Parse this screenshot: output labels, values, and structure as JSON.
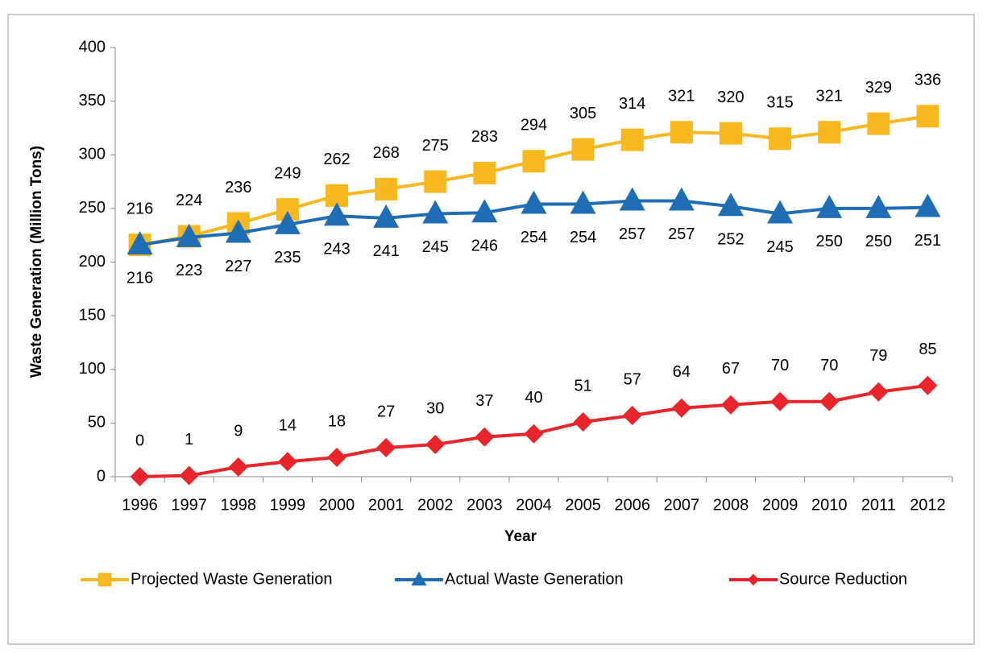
{
  "chart_data": {
    "type": "line",
    "x_label": "Year",
    "y_label": "Waste Generation (Million Tons)",
    "categories": [
      "1996",
      "1997",
      "1998",
      "1999",
      "2000",
      "2001",
      "2002",
      "2003",
      "2004",
      "2005",
      "2006",
      "2007",
      "2008",
      "2009",
      "2010",
      "2011",
      "2012"
    ],
    "series": [
      {
        "name": "Projected Waste Generation",
        "color": "#f8b820",
        "marker": "square",
        "label_position": "above",
        "values": [
          216,
          224,
          236,
          249,
          262,
          268,
          275,
          283,
          294,
          305,
          314,
          321,
          320,
          315,
          321,
          329,
          336
        ]
      },
      {
        "name": "Actual Waste Generation",
        "color": "#1f6db5",
        "marker": "triangle",
        "label_position": "below",
        "values": [
          216,
          223,
          227,
          235,
          243,
          241,
          245,
          246,
          254,
          254,
          257,
          257,
          252,
          245,
          250,
          250,
          251
        ]
      },
      {
        "name": "Source Reduction",
        "color": "#e8252b",
        "marker": "diamond",
        "label_position": "above",
        "values": [
          0,
          1,
          9,
          14,
          18,
          27,
          30,
          37,
          40,
          51,
          57,
          64,
          67,
          70,
          70,
          79,
          85
        ]
      }
    ],
    "ylim": [
      0,
      400
    ],
    "yticks": [
      0,
      50,
      100,
      150,
      200,
      250,
      300,
      350,
      400
    ],
    "grid": false,
    "legend": "bottom"
  }
}
